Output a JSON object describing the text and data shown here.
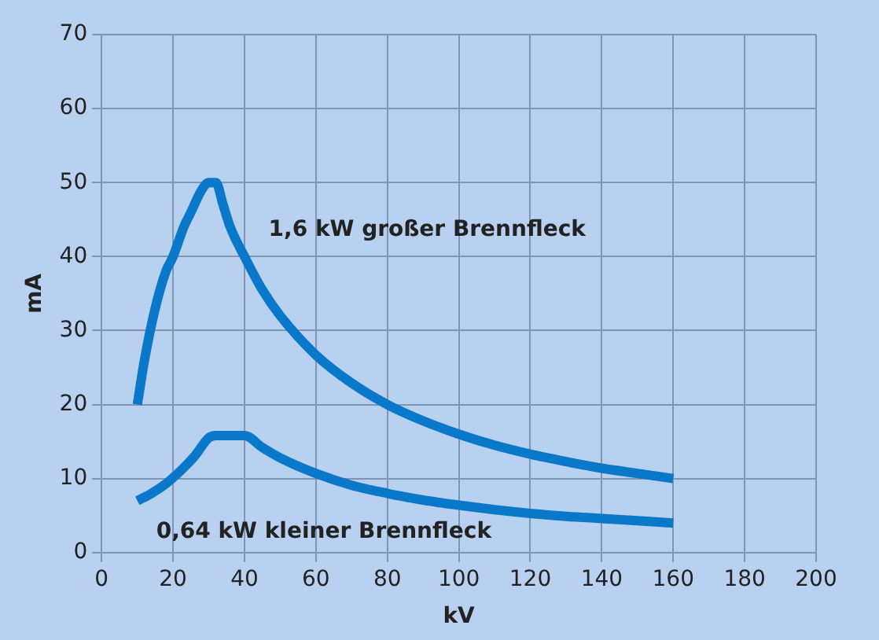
{
  "chart_data": {
    "type": "line",
    "xlabel": "kV",
    "ylabel": "mA",
    "xlim": [
      0,
      200
    ],
    "xticks": [
      0,
      20,
      40,
      60,
      80,
      100,
      120,
      140,
      160,
      180,
      200
    ],
    "ylim": [
      0,
      70
    ],
    "yticks": [
      0,
      10,
      20,
      30,
      40,
      50,
      60,
      70
    ],
    "grid": true,
    "legend": false,
    "marker": "none",
    "line_style": "solid",
    "series": [
      {
        "name": "1,6 kW großer Brennfleck",
        "color": "#0a78c8",
        "x": [
          10,
          12,
          15,
          18,
          20,
          23,
          25,
          28,
          30,
          32,
          34,
          36,
          40,
          45,
          50,
          60,
          70,
          80,
          90,
          100,
          110,
          120,
          130,
          140,
          150,
          160
        ],
        "values": [
          20,
          26,
          33,
          38,
          40,
          44,
          46,
          49,
          50,
          50,
          47,
          44,
          40,
          35.5,
          32,
          26.7,
          22.9,
          20,
          17.8,
          16,
          14.5,
          13.3,
          12.3,
          11.4,
          10.7,
          10
        ]
      },
      {
        "name": "0,64 kW kleiner Brennfleck",
        "color": "#0a78c8",
        "x": [
          10,
          14,
          18,
          22,
          26,
          30,
          32,
          36,
          40,
          45,
          50,
          60,
          70,
          80,
          90,
          100,
          110,
          120,
          130,
          140,
          150,
          160
        ],
        "values": [
          7,
          8,
          9.3,
          11,
          13,
          15.5,
          15.8,
          15.8,
          15.8,
          14.2,
          12.8,
          10.7,
          9.1,
          8,
          7.1,
          6.4,
          5.8,
          5.3,
          4.9,
          4.6,
          4.3,
          4
        ]
      }
    ]
  }
}
